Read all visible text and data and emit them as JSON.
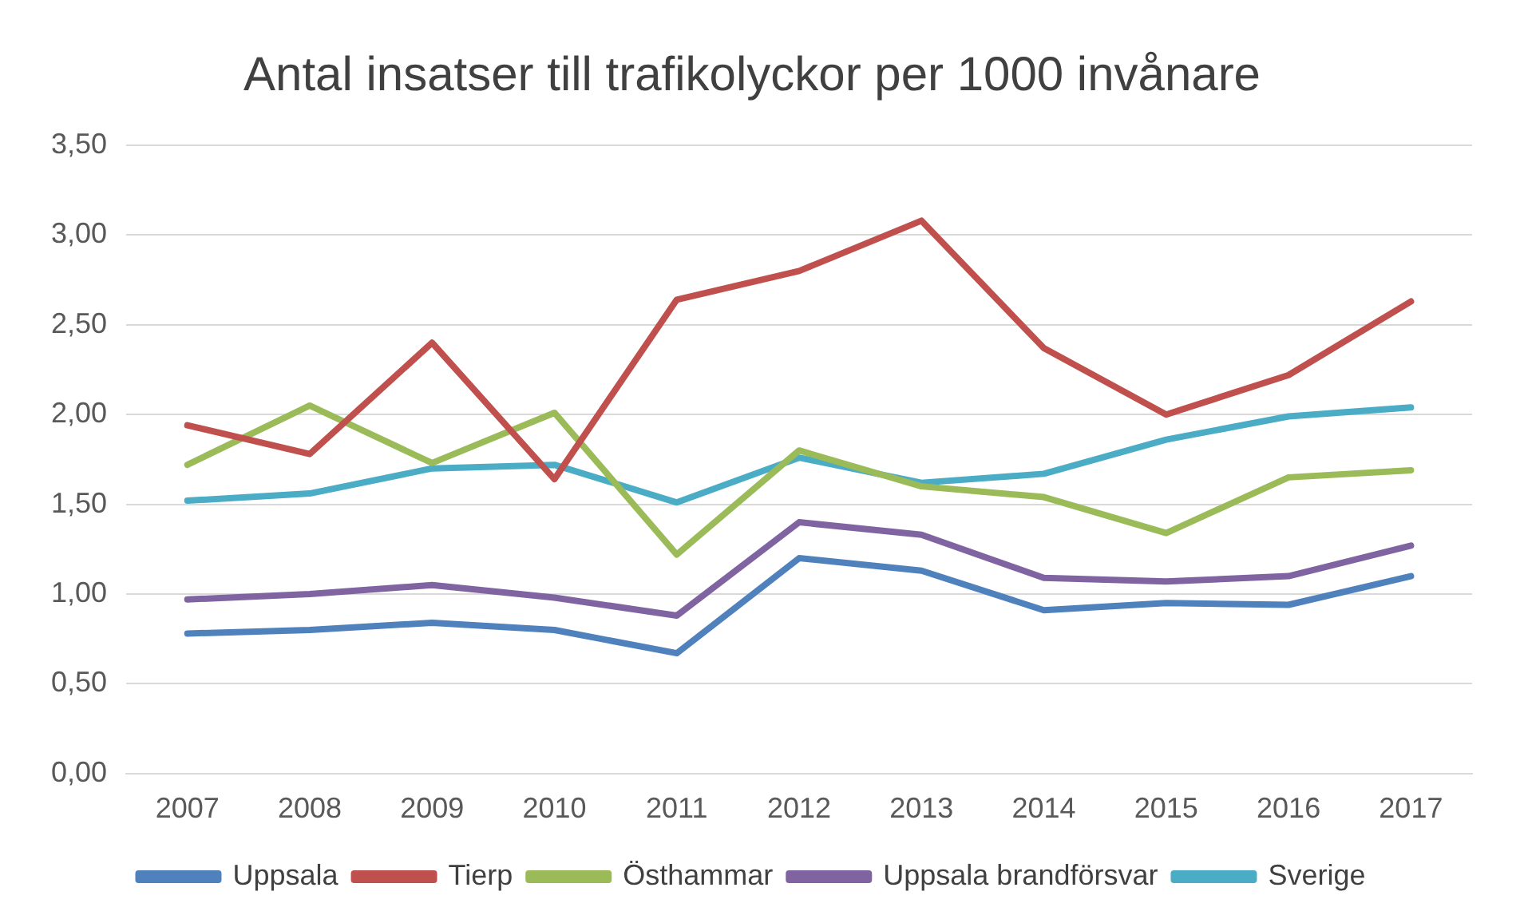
{
  "chart_data": {
    "type": "line",
    "title": "Antal insatser till trafikolyckor per 1000 invånare",
    "categories": [
      "2007",
      "2008",
      "2009",
      "2010",
      "2011",
      "2012",
      "2013",
      "2014",
      "2015",
      "2016",
      "2017"
    ],
    "series": [
      {
        "name": "Uppsala",
        "color": "#4f81bd",
        "values": [
          0.78,
          0.8,
          0.84,
          0.8,
          0.67,
          1.2,
          1.13,
          0.91,
          0.95,
          0.94,
          1.1
        ]
      },
      {
        "name": "Tierp",
        "color": "#c0504d",
        "values": [
          1.94,
          1.78,
          2.4,
          1.64,
          2.64,
          2.8,
          3.08,
          2.37,
          2.0,
          2.22,
          2.63
        ]
      },
      {
        "name": "Östhammar",
        "color": "#9bbb59",
        "values": [
          1.72,
          2.05,
          1.73,
          2.01,
          1.22,
          1.8,
          1.6,
          1.54,
          1.34,
          1.65,
          1.69
        ]
      },
      {
        "name": "Uppsala brandförsvar",
        "color": "#8064a2",
        "values": [
          0.97,
          1.0,
          1.05,
          0.98,
          0.88,
          1.4,
          1.33,
          1.09,
          1.07,
          1.1,
          1.27
        ]
      },
      {
        "name": "Sverige",
        "color": "#4bacc6",
        "values": [
          1.52,
          1.56,
          1.7,
          1.72,
          1.51,
          1.76,
          1.62,
          1.67,
          1.86,
          1.99,
          2.04
        ]
      }
    ],
    "ylim": [
      0,
      3.5
    ],
    "yticks": [
      {
        "value": 0,
        "label": "0,00"
      },
      {
        "value": 0.5,
        "label": "0,50"
      },
      {
        "value": 1,
        "label": "1,00"
      },
      {
        "value": 1.5,
        "label": "1,50"
      },
      {
        "value": 2,
        "label": "2,00"
      },
      {
        "value": 2.5,
        "label": "2,50"
      },
      {
        "value": 3,
        "label": "3,00"
      },
      {
        "value": 3.5,
        "label": "3,50"
      }
    ],
    "grid": "y",
    "legend": "bottom",
    "marker": "none",
    "line_style": "solid"
  }
}
